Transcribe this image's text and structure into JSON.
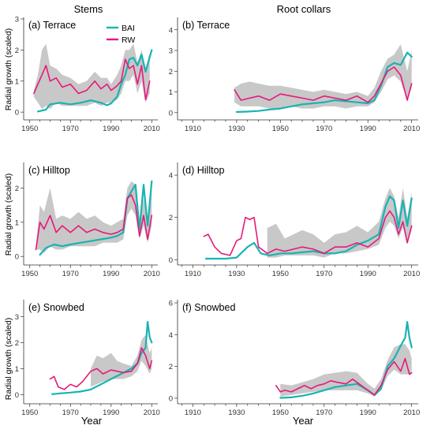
{
  "figure": {
    "column_titles": [
      "Stems",
      "Root collars"
    ],
    "ylabel": "Radial growth (scaled)",
    "xlabel": "Year"
  },
  "legend": {
    "items": [
      {
        "label": "BAI",
        "color": "#19b3b3"
      },
      {
        "label": "RW",
        "color": "#e6197a"
      }
    ],
    "band_color": "#c8c8c8"
  },
  "chart_data": [
    {
      "type": "line",
      "panel": "(a) Terrace",
      "xlim": [
        1947,
        2013
      ],
      "ylim": [
        -0.25,
        3.05
      ],
      "xticks": [
        1950,
        1970,
        1990,
        2010
      ],
      "yticks": [
        0,
        1,
        2,
        3
      ],
      "series": [
        {
          "name": "BAI",
          "x": [
            1954,
            1958,
            1960,
            1965,
            1970,
            1975,
            1980,
            1985,
            1988,
            1990,
            1993,
            1995,
            1997,
            1999,
            2001,
            2003,
            2005,
            2007,
            2010
          ],
          "y": [
            0.02,
            0.08,
            0.25,
            0.3,
            0.25,
            0.3,
            0.38,
            0.3,
            0.22,
            0.28,
            0.5,
            0.9,
            1.2,
            1.7,
            1.75,
            1.5,
            1.85,
            1.3,
            2.0
          ]
        },
        {
          "name": "RW",
          "x": [
            1952,
            1954,
            1956,
            1958,
            1960,
            1963,
            1966,
            1970,
            1974,
            1978,
            1982,
            1985,
            1988,
            1990,
            1993,
            1995,
            1997,
            1999,
            2001,
            2003,
            2005,
            2007,
            2009
          ],
          "y": [
            0.6,
            0.9,
            1.2,
            1.5,
            1.0,
            1.1,
            0.8,
            0.9,
            0.6,
            0.7,
            1.0,
            0.75,
            0.9,
            0.7,
            0.85,
            1.0,
            1.7,
            1.4,
            1.5,
            0.9,
            1.5,
            0.4,
            1.0
          ]
        }
      ],
      "band": {
        "x": [
          1952,
          1954,
          1956,
          1958,
          1960,
          1963,
          1966,
          1970,
          1974,
          1978,
          1982,
          1985,
          1988,
          1990,
          1993,
          1995,
          1997,
          1999,
          2001,
          2003,
          2005,
          2007,
          2009
        ],
        "lower": [
          0.5,
          0.3,
          0.1,
          0.2,
          0.1,
          0.3,
          0.2,
          0.2,
          0.2,
          0.2,
          0.3,
          0.2,
          0.3,
          0.3,
          0.4,
          0.6,
          1.0,
          1.0,
          1.2,
          0.6,
          1.0,
          0.3,
          0.6
        ],
        "upper": [
          0.7,
          1.2,
          2.0,
          2.2,
          1.5,
          1.4,
          1.2,
          1.1,
          0.9,
          1.0,
          1.3,
          1.1,
          1.1,
          0.9,
          1.2,
          1.5,
          2.0,
          2.0,
          2.2,
          1.6,
          2.0,
          1.4,
          1.9
        ]
      }
    },
    {
      "type": "line",
      "panel": "(b) Terrace",
      "xlim": [
        1903,
        2013
      ],
      "ylim": [
        -0.35,
        4.6
      ],
      "xticks": [
        1910,
        1930,
        1950,
        1970,
        1990,
        2010
      ],
      "yticks": [
        0,
        1,
        2,
        3,
        4
      ],
      "series": [
        {
          "name": "BAI",
          "x": [
            1930,
            1935,
            1940,
            1945,
            1950,
            1955,
            1960,
            1965,
            1970,
            1975,
            1980,
            1985,
            1990,
            1993,
            1996,
            1999,
            2002,
            2005,
            2008,
            2010
          ],
          "y": [
            0.03,
            0.05,
            0.08,
            0.15,
            0.2,
            0.3,
            0.4,
            0.45,
            0.5,
            0.6,
            0.55,
            0.5,
            0.45,
            0.6,
            1.3,
            2.2,
            2.4,
            2.3,
            2.9,
            2.7
          ]
        },
        {
          "name": "RW",
          "x": [
            1929,
            1932,
            1936,
            1940,
            1945,
            1950,
            1955,
            1960,
            1965,
            1970,
            1975,
            1980,
            1985,
            1990,
            1993,
            1996,
            1999,
            2002,
            2005,
            2008,
            2010
          ],
          "y": [
            1.1,
            0.6,
            0.7,
            0.8,
            0.6,
            0.9,
            0.8,
            0.7,
            0.6,
            0.8,
            0.7,
            0.6,
            0.8,
            0.5,
            0.8,
            1.4,
            2.0,
            2.2,
            1.8,
            0.6,
            1.4
          ]
        }
      ],
      "band": {
        "x": [
          1929,
          1932,
          1936,
          1940,
          1945,
          1950,
          1955,
          1960,
          1965,
          1970,
          1975,
          1980,
          1985,
          1990,
          1993,
          1996,
          1999,
          2002,
          2005,
          2008,
          2010
        ],
        "lower": [
          0.5,
          0.3,
          0.3,
          0.3,
          0.2,
          0.2,
          0.3,
          0.2,
          0.2,
          0.3,
          0.3,
          0.2,
          0.3,
          0.3,
          0.5,
          1.0,
          1.6,
          1.8,
          1.5,
          0.6,
          1.2
        ],
        "upper": [
          1.2,
          1.4,
          1.5,
          1.4,
          1.3,
          1.3,
          1.2,
          1.1,
          1.0,
          1.1,
          1.0,
          0.9,
          1.0,
          0.8,
          1.2,
          2.0,
          2.6,
          2.8,
          3.3,
          2.0,
          3.0
        ]
      }
    },
    {
      "type": "line",
      "panel": "(c) Hilltop",
      "xlim": [
        1947,
        2013
      ],
      "ylim": [
        -0.25,
        2.75
      ],
      "xticks": [
        1950,
        1970,
        1990,
        2010
      ],
      "yticks": [
        0,
        1,
        2
      ],
      "series": [
        {
          "name": "BAI",
          "x": [
            1955,
            1958,
            1962,
            1966,
            1970,
            1975,
            1980,
            1985,
            1990,
            1993,
            1996,
            1998,
            2000,
            2002,
            2004,
            2006,
            2008,
            2010
          ],
          "y": [
            0.05,
            0.25,
            0.35,
            0.3,
            0.35,
            0.4,
            0.45,
            0.5,
            0.55,
            0.6,
            0.7,
            1.7,
            1.9,
            2.1,
            0.8,
            2.1,
            0.9,
            2.2
          ]
        },
        {
          "name": "RW",
          "x": [
            1953,
            1955,
            1957,
            1960,
            1963,
            1966,
            1970,
            1974,
            1978,
            1982,
            1986,
            1990,
            1993,
            1996,
            1998,
            2000,
            2002,
            2004,
            2006,
            2008,
            2010
          ],
          "y": [
            0.2,
            1.0,
            0.8,
            1.2,
            0.7,
            0.9,
            0.7,
            0.9,
            0.7,
            0.8,
            0.7,
            0.65,
            0.7,
            0.8,
            1.7,
            1.8,
            1.5,
            0.6,
            1.2,
            0.5,
            1.2
          ]
        }
      ],
      "band": {
        "x": [
          1953,
          1955,
          1957,
          1960,
          1963,
          1966,
          1970,
          1974,
          1978,
          1982,
          1986,
          1990,
          1993,
          1996,
          1998,
          2000,
          2002,
          2004,
          2006,
          2008,
          2010
        ],
        "lower": [
          0.2,
          0.2,
          0.1,
          0.3,
          0.2,
          0.2,
          0.3,
          0.3,
          0.3,
          0.3,
          0.4,
          0.4,
          0.4,
          0.5,
          1.2,
          1.4,
          1.2,
          0.5,
          0.9,
          0.4,
          0.9
        ],
        "upper": [
          0.3,
          1.5,
          1.3,
          2.0,
          1.1,
          1.2,
          1.1,
          1.3,
          1.1,
          1.2,
          1.0,
          0.9,
          1.0,
          1.1,
          2.0,
          2.2,
          2.1,
          1.0,
          1.7,
          1.0,
          2.0
        ]
      }
    },
    {
      "type": "line",
      "panel": "(d) Hilltop",
      "xlim": [
        1903,
        2013
      ],
      "ylim": [
        -0.25,
        4.6
      ],
      "xticks": [
        1910,
        1930,
        1950,
        1970,
        1990,
        2010
      ],
      "yticks": [
        0,
        2,
        4
      ],
      "series": [
        {
          "name": "BAI",
          "x": [
            1916,
            1920,
            1925,
            1930,
            1935,
            1938,
            1941,
            1945,
            1950,
            1955,
            1960,
            1965,
            1970,
            1975,
            1980,
            1985,
            1990,
            1995,
            1998,
            2000,
            2002,
            2004,
            2006,
            2008,
            2010
          ],
          "y": [
            0.05,
            0.05,
            0.05,
            0.1,
            0.6,
            0.8,
            0.3,
            0.2,
            0.3,
            0.3,
            0.35,
            0.4,
            0.3,
            0.3,
            0.4,
            0.7,
            0.9,
            1.2,
            2.5,
            3.0,
            2.8,
            1.5,
            2.8,
            1.6,
            2.9
          ]
        },
        {
          "name": "RW",
          "x": [
            1915,
            1917,
            1920,
            1923,
            1927,
            1930,
            1932,
            1934,
            1936,
            1938,
            1940,
            1944,
            1948,
            1952,
            1956,
            1960,
            1965,
            1970,
            1975,
            1980,
            1985,
            1990,
            1995,
            1998,
            2000,
            2002,
            2004,
            2006,
            2008,
            2010
          ],
          "y": [
            1.1,
            1.2,
            0.6,
            0.3,
            0.2,
            0.9,
            1.0,
            2.0,
            1.9,
            2.0,
            0.6,
            0.3,
            0.5,
            0.4,
            0.5,
            0.6,
            0.5,
            0.3,
            0.6,
            0.6,
            0.8,
            0.6,
            1.0,
            2.0,
            2.3,
            2.0,
            1.2,
            1.8,
            0.8,
            1.6
          ]
        }
      ],
      "band": {
        "x": [
          1944,
          1948,
          1952,
          1956,
          1960,
          1965,
          1970,
          1975,
          1980,
          1985,
          1990,
          1995,
          1998,
          2000,
          2002,
          2004,
          2006,
          2008,
          2010
        ],
        "lower": [
          0.1,
          0.1,
          0.2,
          0.2,
          0.2,
          0.2,
          0.1,
          0.3,
          0.3,
          0.4,
          0.5,
          0.7,
          1.5,
          1.8,
          1.6,
          1.0,
          1.5,
          0.8,
          1.4
        ],
        "upper": [
          1.5,
          1.7,
          1.0,
          1.2,
          1.4,
          1.2,
          0.8,
          1.2,
          1.3,
          1.6,
          1.3,
          1.8,
          2.9,
          3.4,
          3.0,
          2.0,
          3.4,
          2.0,
          3.2
        ]
      }
    },
    {
      "type": "line",
      "panel": "(e) Snowbed",
      "xlim": [
        1947,
        2013
      ],
      "ylim": [
        -0.35,
        3.65
      ],
      "xticks": [
        1950,
        1970,
        1990,
        2010
      ],
      "yticks": [
        0,
        1,
        2,
        3
      ],
      "series": [
        {
          "name": "BAI",
          "x": [
            1961,
            1965,
            1970,
            1975,
            1980,
            1985,
            1990,
            1995,
            2000,
            2003,
            2005,
            2007,
            2008,
            2009,
            2010
          ],
          "y": [
            0.02,
            0.05,
            0.08,
            0.12,
            0.2,
            0.4,
            0.6,
            0.8,
            1.0,
            1.2,
            1.6,
            1.8,
            2.8,
            2.2,
            2.0
          ]
        },
        {
          "name": "RW",
          "x": [
            1960,
            1962,
            1964,
            1967,
            1970,
            1973,
            1976,
            1980,
            1983,
            1986,
            1990,
            1993,
            1996,
            2000,
            2003,
            2005,
            2007,
            2009,
            2010
          ],
          "y": [
            0.6,
            0.7,
            0.3,
            0.2,
            0.4,
            0.3,
            0.5,
            0.9,
            1.0,
            0.8,
            0.95,
            0.9,
            0.85,
            0.9,
            1.2,
            1.8,
            1.5,
            1.0,
            1.3
          ]
        }
      ],
      "band": {
        "x": [
          1980,
          1983,
          1986,
          1990,
          1993,
          1996,
          2000,
          2003,
          2005,
          2007,
          2009,
          2010
        ],
        "lower": [
          0.3,
          0.4,
          0.5,
          0.6,
          0.6,
          0.6,
          0.7,
          0.9,
          1.3,
          1.1,
          0.8,
          1.0
        ],
        "upper": [
          1.0,
          1.5,
          1.4,
          1.6,
          1.3,
          1.2,
          1.1,
          1.5,
          2.1,
          2.3,
          1.6,
          1.8
        ]
      }
    },
    {
      "type": "line",
      "panel": "(f) Snowbed",
      "xlim": [
        1903,
        2013
      ],
      "ylim": [
        -0.35,
        6.2
      ],
      "xticks": [
        1910,
        1930,
        1950,
        1970,
        1990,
        2010
      ],
      "yticks": [
        0,
        2,
        4,
        6
      ],
      "series": [
        {
          "name": "BAI",
          "x": [
            1950,
            1955,
            1960,
            1965,
            1970,
            1975,
            1980,
            1985,
            1990,
            1993,
            1996,
            1999,
            2002,
            2005,
            2007,
            2008,
            2009,
            2010
          ],
          "y": [
            0.02,
            0.05,
            0.15,
            0.3,
            0.5,
            0.7,
            0.8,
            0.9,
            0.5,
            0.2,
            0.6,
            2.0,
            2.5,
            3.3,
            3.8,
            4.8,
            3.8,
            3.2
          ]
        },
        {
          "name": "RW",
          "x": [
            1948,
            1950,
            1952,
            1955,
            1958,
            1961,
            1964,
            1967,
            1970,
            1973,
            1976,
            1980,
            1983,
            1986,
            1990,
            1993,
            1996,
            1999,
            2002,
            2005,
            2007,
            2009,
            2010
          ],
          "y": [
            0.8,
            0.4,
            0.5,
            0.4,
            0.6,
            0.8,
            0.6,
            0.8,
            0.9,
            1.1,
            1.0,
            0.9,
            1.2,
            0.9,
            0.5,
            0.2,
            0.8,
            1.8,
            2.3,
            1.7,
            2.5,
            1.5,
            1.6
          ]
        }
      ],
      "band": {
        "x": [
          1950,
          1955,
          1960,
          1965,
          1970,
          1975,
          1980,
          1985,
          1990,
          1993,
          1996,
          1999,
          2002,
          2005,
          2007,
          2009,
          2010
        ],
        "lower": [
          0.1,
          0.2,
          0.3,
          0.4,
          0.5,
          0.5,
          0.5,
          0.5,
          0.3,
          0.1,
          0.5,
          1.4,
          1.8,
          1.5,
          1.5,
          1.5,
          1.6
        ],
        "upper": [
          0.9,
          0.8,
          1.0,
          1.2,
          1.5,
          1.6,
          1.7,
          1.6,
          0.9,
          0.6,
          1.2,
          2.4,
          3.2,
          3.4,
          3.4,
          3.0,
          2.5
        ]
      }
    }
  ]
}
